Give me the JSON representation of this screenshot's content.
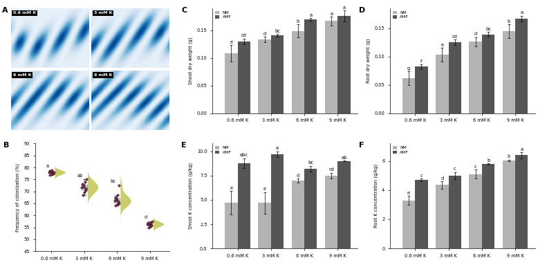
{
  "chart_data": [
    {
      "type": "image",
      "panel": "A",
      "labels": [
        "0.6 mM K",
        "3 mM K",
        "6 mM K",
        "9 mM K"
      ]
    },
    {
      "type": "raincloud",
      "panel": "B",
      "y_label": "Frequency of colonization (%)",
      "categories": [
        "0.6 mM K",
        "3 mM K",
        "6 mM K",
        "9 mM K"
      ],
      "points": [
        [
          76.8,
          77.2,
          77.5,
          77.8,
          78.0,
          78.2,
          78.4,
          78.6,
          79.0,
          77.9
        ],
        [
          68.5,
          69.5,
          70.5,
          71.0,
          71.5,
          72.0,
          72.5,
          73.0,
          74.0,
          75.0
        ],
        [
          64.0,
          64.5,
          65.0,
          65.5,
          66.0,
          66.5,
          67.0,
          67.5,
          68.5,
          72.5
        ],
        [
          55.0,
          55.5,
          55.8,
          56.0,
          56.2,
          56.4,
          56.6,
          56.8,
          57.0,
          57.5
        ]
      ],
      "letters": [
        "a",
        "ab",
        "bc",
        "d"
      ],
      "color": "#c5c95a",
      "ylim": [
        45,
        90
      ],
      "yticks": [
        45,
        50,
        55,
        60,
        65,
        70,
        75,
        80,
        85,
        90
      ]
    },
    {
      "type": "bar",
      "panel": "C",
      "y_label": "Shoot dry weight (g)",
      "categories": [
        "0.6 mM K",
        "3 mM K",
        "6 mM K",
        "9 mM K"
      ],
      "series": [
        {
          "name": "NM",
          "color": "#b3b3b3",
          "values": [
            0.108,
            0.133,
            0.149,
            0.167
          ],
          "error": [
            0.015,
            0.005,
            0.012,
            0.008
          ],
          "letters": [
            "e",
            "d",
            "b",
            "a"
          ]
        },
        {
          "name": "AMF",
          "color": "#555555",
          "values": [
            0.13,
            0.141,
            0.17,
            0.176
          ],
          "error": [
            0.005,
            0.002,
            0.002,
            0.01
          ],
          "letters": [
            "cd",
            "bc",
            "a",
            "a"
          ]
        }
      ],
      "ylim": [
        0,
        0.19
      ],
      "yticks": [
        {
          "value": 0,
          "label": "0.00"
        },
        0.05,
        {
          "value": 0.1,
          "label": "0.10"
        },
        0.15
      ],
      "legend": "upper left"
    },
    {
      "type": "bar",
      "panel": "D",
      "y_label": "Root dry weight (g)",
      "categories": [
        "0.6 mM K",
        "3 mM K",
        "6 mM K",
        "9 mM K"
      ],
      "series": [
        {
          "name": "NM",
          "color": "#b3b3b3",
          "values": [
            0.062,
            0.103,
            0.126,
            0.145
          ],
          "error": [
            0.012,
            0.012,
            0.008,
            0.012
          ],
          "letters": [
            "g",
            "e",
            "d",
            "b"
          ]
        },
        {
          "name": "AMF",
          "color": "#555555",
          "values": [
            0.082,
            0.125,
            0.139,
            0.167
          ],
          "error": [
            0.004,
            0.005,
            0.004,
            0.005
          ],
          "letters": [
            "f",
            "cd",
            "bc",
            "a"
          ]
        }
      ],
      "ylim": [
        0,
        0.185
      ],
      "yticks": [
        {
          "value": 0,
          "label": "0.00"
        },
        0.05,
        {
          "value": 0.1,
          "label": "0.10"
        },
        0.15
      ],
      "legend": "upper left"
    },
    {
      "type": "bar",
      "panel": "E",
      "y_label": "Shoot K concentration (g/kg)",
      "categories": [
        "0.6 mM K",
        "3 mM K",
        "6 mM K",
        "9 mM K"
      ],
      "series": [
        {
          "name": "NM",
          "color": "#b3b3b3",
          "values": [
            4.7,
            4.7,
            7.0,
            7.5
          ],
          "error": [
            1.2,
            1.1,
            0.2,
            0.3
          ],
          "letters": [
            "e",
            "e",
            "d",
            "cd"
          ]
        },
        {
          "name": "AMF",
          "color": "#555555",
          "values": [
            8.8,
            9.7,
            8.2,
            9.0
          ],
          "error": [
            0.5,
            0.3,
            0.3,
            0.05
          ],
          "letters": [
            "abc",
            "a",
            "bc",
            "ab"
          ]
        }
      ],
      "ylim": [
        0,
        10.8
      ],
      "yticks": [
        {
          "value": 0,
          "label": "0.0"
        },
        2.5,
        {
          "value": 5,
          "label": "5.0"
        },
        7.5,
        {
          "value": 10,
          "label": "10.0"
        }
      ],
      "legend": "upper left"
    },
    {
      "type": "bar",
      "panel": "F",
      "y_label": "Root K concentration (g/kg)",
      "categories": [
        "0.6 mM K",
        "3 mM K",
        "6 mM K",
        "9 mM K"
      ],
      "series": [
        {
          "name": "NM",
          "color": "#b3b3b3",
          "values": [
            3.3,
            4.35,
            5.1,
            6.05
          ],
          "error": [
            0.3,
            0.25,
            0.3,
            0.05
          ],
          "letters": [
            "e",
            "d",
            "c",
            "b"
          ]
        },
        {
          "name": "AMF",
          "color": "#555555",
          "values": [
            4.7,
            5.0,
            5.8,
            6.4
          ],
          "error": [
            0.1,
            0.25,
            0.03,
            0.2
          ],
          "letters": [
            "c",
            "c",
            "b",
            "a"
          ]
        }
      ],
      "ylim": [
        0,
        7.2
      ],
      "yticks": [
        0,
        2,
        4,
        6
      ],
      "legend": "upper left"
    }
  ]
}
